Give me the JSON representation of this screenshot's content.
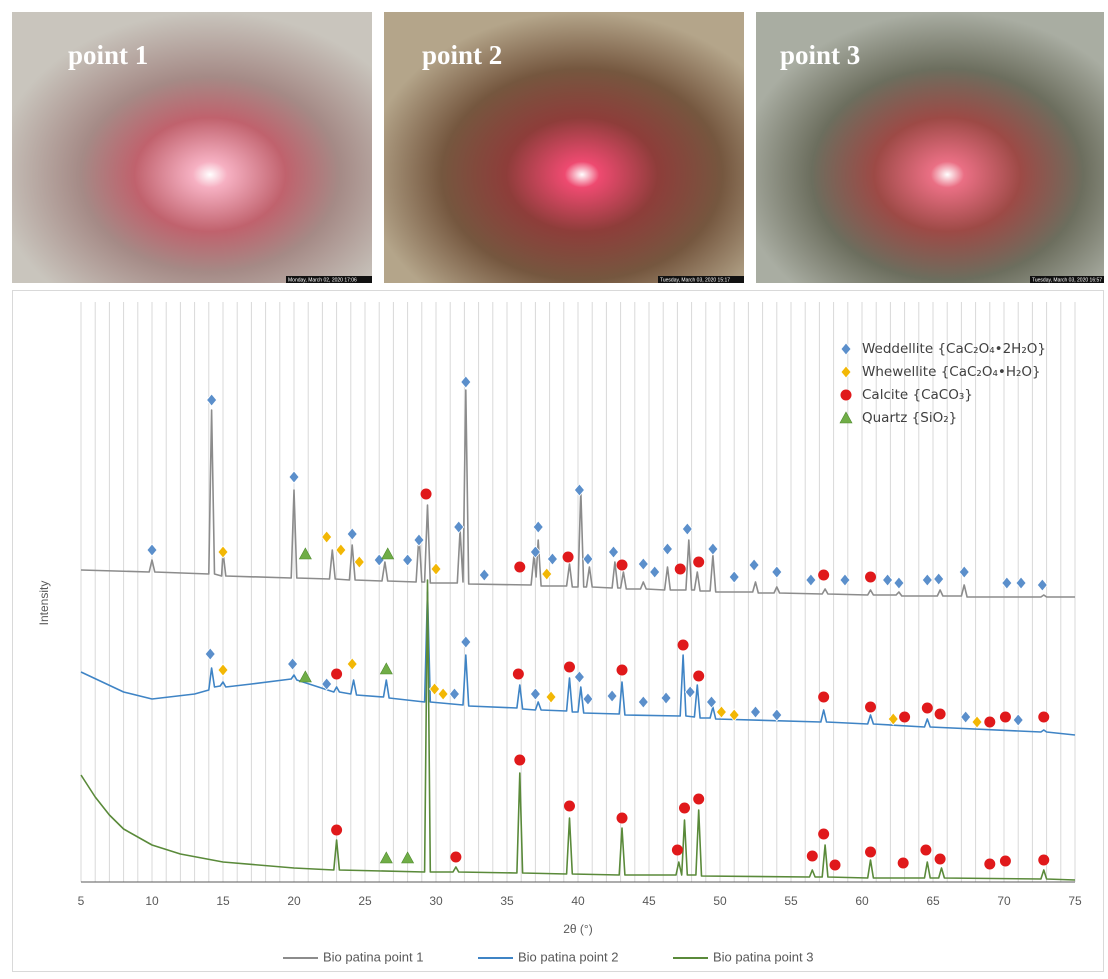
{
  "photos": [
    {
      "label": "point 1",
      "timestamp": "Monday, March 02, 2020 17:06"
    },
    {
      "label": "point 2",
      "timestamp": "Tuesday, March 03, 2020 15:17"
    },
    {
      "label": "point 3",
      "timestamp": "Tuesday, March 03, 2020 16:57"
    }
  ],
  "chart_data": {
    "type": "line",
    "x_label": "2θ (°)",
    "y_label": "Intensity",
    "xlim": [
      5,
      75
    ],
    "xticks": [
      5,
      10,
      15,
      20,
      25,
      30,
      35,
      40,
      45,
      50,
      55,
      60,
      65,
      70,
      75
    ],
    "xminor": [
      5,
      6,
      7,
      8,
      9,
      10,
      11,
      12,
      13,
      14,
      15,
      16,
      17,
      18,
      19,
      20,
      21,
      22,
      23,
      24,
      25,
      26,
      27,
      28,
      29,
      30,
      31,
      32,
      33,
      34,
      35,
      36,
      37,
      38,
      39,
      40,
      41,
      42,
      43,
      44,
      45,
      46,
      47,
      48,
      49,
      50,
      51,
      52,
      53,
      54,
      55,
      56,
      57,
      58,
      59,
      60,
      61,
      62,
      63,
      64,
      65,
      66,
      67,
      68,
      69,
      70,
      71,
      72,
      73,
      74,
      75
    ],
    "ylim": [
      0,
      590
    ],
    "grid": true,
    "series": [
      {
        "name": "Bio patina point 1",
        "color": "#8c8c8c",
        "x": [
          5,
          9.8,
          10,
          10.2,
          14,
          14.2,
          14.4,
          14.9,
          15,
          15.2,
          19.8,
          20,
          20.2,
          22.5,
          22.7,
          22.9,
          23.9,
          24.1,
          24.3,
          26.2,
          26.4,
          26.6,
          28.6,
          28.8,
          29,
          29.2,
          29.4,
          29.6,
          31.5,
          31.7,
          31.9,
          32.1,
          32.3,
          36.7,
          36.9,
          37.05,
          37.2,
          37.4,
          39.2,
          39.4,
          39.6,
          40,
          40.2,
          40.4,
          40.6,
          40.8,
          41,
          42.4,
          42.6,
          42.8,
          43,
          43.2,
          43.4,
          44.4,
          44.6,
          44.8,
          46.1,
          46.3,
          46.5,
          47.6,
          47.8,
          48,
          48.2,
          48.4,
          48.6,
          49.3,
          49.5,
          49.7,
          52.3,
          52.5,
          52.7,
          53.8,
          54,
          54.2,
          57.2,
          57.4,
          57.6,
          60.4,
          60.6,
          60.8,
          62.4,
          62.6,
          62.8,
          65.3,
          65.5,
          65.7,
          67,
          67.2,
          67.4,
          72.6,
          72.8,
          73,
          75
        ],
        "values": [
          312,
          310,
          322,
          310,
          308,
          472,
          308,
          306,
          330,
          306,
          304,
          392,
          304,
          303,
          332,
          303,
          302,
          337,
          302,
          301,
          320,
          301,
          300,
          347,
          300,
          300,
          377,
          299,
          299,
          352,
          300,
          492,
          298,
          297,
          327,
          305,
          342,
          296,
          296,
          318,
          295,
          295,
          392,
          295,
          295,
          315,
          295,
          294,
          320,
          294,
          294,
          310,
          293,
          293,
          300,
          293,
          292,
          315,
          292,
          292,
          342,
          292,
          292,
          310,
          291,
          291,
          327,
          290,
          290,
          300,
          289,
          289,
          295,
          289,
          288,
          293,
          288,
          287,
          292,
          287,
          287,
          290,
          286,
          286,
          292,
          286,
          286,
          297,
          285,
          285,
          287,
          285,
          285
        ]
      },
      {
        "name": "Bio patina point 2",
        "color": "#3f84c5",
        "x": [
          5,
          8,
          10,
          13,
          14,
          14.2,
          14.4,
          14.8,
          15,
          15.2,
          17,
          19.8,
          20,
          20.2,
          22.8,
          23,
          23.2,
          24,
          24.2,
          24.4,
          26.3,
          26.5,
          26.7,
          29.2,
          29.4,
          29.6,
          31.9,
          32.1,
          32.3,
          35.7,
          35.9,
          36.1,
          37,
          37.2,
          37.4,
          39.2,
          39.4,
          39.6,
          40,
          40.2,
          40.4,
          42.9,
          43.1,
          43.3,
          47.2,
          47.4,
          47.6,
          48.2,
          48.4,
          48.6,
          49.3,
          49.5,
          49.7,
          57.1,
          57.3,
          57.5,
          60.4,
          60.6,
          60.8,
          64.4,
          64.6,
          64.8,
          72.6,
          72.8,
          73,
          75
        ],
        "values": [
          210,
          190,
          183,
          188,
          192,
          214,
          195,
          196,
          200,
          195,
          198,
          203,
          207,
          202,
          190,
          195,
          190,
          188,
          202,
          187,
          185,
          202,
          184,
          180,
          290,
          180,
          177,
          227,
          176,
          174,
          197,
          173,
          172,
          180,
          172,
          171,
          204,
          170,
          170,
          195,
          169,
          168,
          200,
          167,
          166,
          227,
          166,
          165,
          197,
          164,
          164,
          175,
          163,
          160,
          172,
          160,
          158,
          167,
          158,
          155,
          163,
          155,
          150,
          152,
          150,
          147
        ]
      },
      {
        "name": "Bio patina point 3",
        "color": "#5a8a3a",
        "x": [
          5,
          6,
          7,
          8,
          10,
          12,
          15,
          20,
          22.8,
          23,
          23.2,
          29.2,
          29.4,
          29.6,
          31.2,
          31.4,
          31.6,
          35.7,
          35.9,
          36.1,
          39.2,
          39.4,
          39.6,
          42.9,
          43.1,
          43.3,
          46.9,
          47.1,
          47.3,
          47.5,
          47.7,
          48.3,
          48.5,
          48.7,
          56.3,
          56.5,
          56.7,
          57.2,
          57.4,
          57.6,
          60.4,
          60.6,
          60.8,
          64.4,
          64.6,
          64.8,
          65.4,
          65.6,
          65.8,
          72.6,
          72.8,
          73,
          75
        ],
        "values": [
          107,
          85,
          67,
          53,
          37,
          28,
          20,
          14,
          12,
          42,
          12,
          10,
          302,
          10,
          10,
          15,
          10,
          9,
          109,
          9,
          8,
          64,
          8,
          7,
          54,
          7,
          7,
          20,
          7,
          62,
          7,
          7,
          72,
          6,
          5,
          12,
          5,
          5,
          37,
          5,
          4,
          22,
          4,
          4,
          20,
          4,
          4,
          14,
          4,
          3,
          12,
          3,
          2
        ]
      }
    ],
    "markers": [
      {
        "name": "Weddellite {CaC₂O₄•2H₂O}",
        "shape": "diamond",
        "color": "#5b8fcb",
        "x": [
          10,
          14.2,
          20,
          24.1,
          26,
          28,
          28.8,
          31.6,
          32.1,
          33.4,
          37,
          37.2,
          38.2,
          40.1,
          40.7,
          42.5,
          44.6,
          45.4,
          46.3,
          47.7,
          49.5,
          51,
          52.4,
          54,
          56.4,
          58.8,
          61.8,
          62.6,
          64.6,
          65.4,
          67.2,
          70.2,
          71.2,
          72.7,
          14.1,
          19.9,
          22.3,
          31.3,
          32.1,
          37,
          40.1,
          40.7,
          42.4,
          44.6,
          46.2,
          47.9,
          49.4,
          52.5,
          54,
          67.3,
          71
        ],
        "values": [
          332,
          482,
          405,
          348,
          322,
          322,
          342,
          355,
          500,
          307,
          330,
          355,
          323,
          392,
          323,
          330,
          318,
          310,
          333,
          353,
          333,
          305,
          317,
          310,
          302,
          302,
          302,
          299,
          302,
          303,
          310,
          299,
          299,
          297,
          228,
          218,
          198,
          188,
          240,
          188,
          205,
          183,
          186,
          180,
          184,
          190,
          180,
          170,
          167,
          165,
          162
        ]
      },
      {
        "name": "Whewellite {CaC₂O₄•H₂O}",
        "shape": "diamond",
        "color": "#f2b705",
        "x": [
          15,
          22.3,
          23.3,
          24.6,
          30,
          37.8,
          15,
          24.1,
          29.9,
          30.5,
          38.1,
          50.1,
          51,
          62.2,
          68.1
        ],
        "values": [
          330,
          345,
          332,
          320,
          313,
          308,
          212,
          218,
          193,
          188,
          185,
          170,
          167,
          163,
          160
        ]
      },
      {
        "name": "Calcite {CaCO₃}",
        "shape": "circle",
        "color": "#e0191b",
        "x": [
          29.3,
          35.9,
          39.3,
          43.1,
          47.2,
          48.5,
          57.3,
          60.6,
          23,
          35.8,
          39.4,
          43.1,
          47.4,
          48.5,
          57.3,
          60.6,
          63,
          64.6,
          65.5,
          69,
          70.1,
          72.8,
          23,
          31.4,
          35.9,
          39.4,
          43.1,
          47,
          47.5,
          48.5,
          56.5,
          57.3,
          58.1,
          60.6,
          62.9,
          64.5,
          65.5,
          69,
          70.1,
          72.8
        ],
        "values": [
          388,
          315,
          325,
          317,
          313,
          320,
          307,
          305,
          208,
          208,
          215,
          212,
          237,
          206,
          185,
          175,
          165,
          174,
          168,
          160,
          165,
          165,
          52,
          25,
          122,
          76,
          64,
          32,
          74,
          83,
          26,
          48,
          17,
          30,
          19,
          32,
          23,
          18,
          21,
          22
        ]
      },
      {
        "name": "Quartz {SiO₂}",
        "shape": "triangle",
        "color": "#70ad47",
        "x": [
          20.8,
          26.6,
          20.8,
          26.5,
          26.5,
          28
        ],
        "values": [
          328,
          328,
          205,
          213,
          24,
          24
        ]
      }
    ]
  }
}
